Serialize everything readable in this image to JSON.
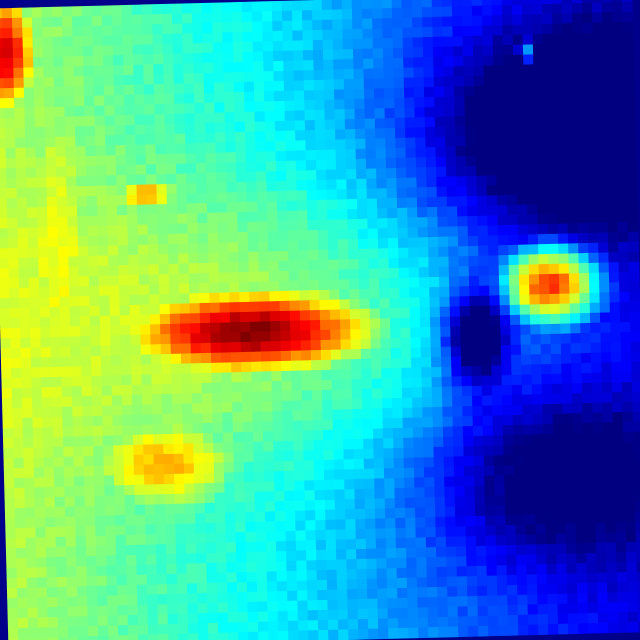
{
  "image": {
    "kind": "false-color intensity raster (jet colormap), rotated scan",
    "colormap": "jet",
    "background_color": "#00008b",
    "palette": [
      "#00008b",
      "#0000ff",
      "#0080ff",
      "#00ffff",
      "#80ff80",
      "#ffff00",
      "#ff8000",
      "#ff0000",
      "#800000"
    ],
    "grid": {
      "cols": 64,
      "rows": 64
    },
    "rotation_deg": -1.5,
    "features": [
      {
        "name": "main-hot-ridge",
        "peak_level": 1.0
      },
      {
        "name": "right-hot-lobe",
        "peak_level": 0.88
      },
      {
        "name": "cold-notch-in-ridge",
        "peak_level": 0.45
      },
      {
        "name": "upper-left-hot-corner",
        "peak_level": 0.92
      },
      {
        "name": "left-warm-band",
        "peak_level": 0.62
      },
      {
        "name": "lower-left-warm-region",
        "peak_level": 0.7
      },
      {
        "name": "upper-small-blob",
        "peak_level": 0.78
      },
      {
        "name": "top-right-bright-dot",
        "peak_level": 0.55
      },
      {
        "name": "right-cold-region",
        "peak_level": 0.05
      }
    ]
  }
}
